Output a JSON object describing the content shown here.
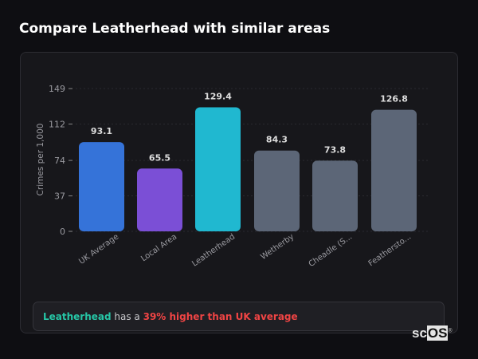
{
  "title": "Compare Leatherhead with similar areas",
  "chart_data": {
    "type": "bar",
    "title": "",
    "xlabel": "",
    "ylabel": "Crimes per 1,000",
    "ylim": [
      0,
      149
    ],
    "yticks": [
      0,
      37,
      74,
      112,
      149
    ],
    "grid": true,
    "categories": [
      "UK Average",
      "Local Area",
      "Leatherhead",
      "Wetherby",
      "Cheadle (S...",
      "Feathersto..."
    ],
    "values": [
      93.1,
      65.5,
      129.4,
      84.3,
      73.8,
      126.8
    ],
    "value_labels": [
      "93.1",
      "65.5",
      "129.4",
      "84.3",
      "73.8",
      "126.8"
    ],
    "colors": [
      "#3573d9",
      "#7b4fd6",
      "#20b8d0",
      "#5c6677",
      "#5c6677",
      "#5c6677"
    ]
  },
  "summary": {
    "place": "Leatherhead",
    "middle": " has a ",
    "highlight": "39% higher than UK average"
  },
  "logo": {
    "text_a": "sc",
    "text_b": "OS",
    "mark": "®"
  }
}
